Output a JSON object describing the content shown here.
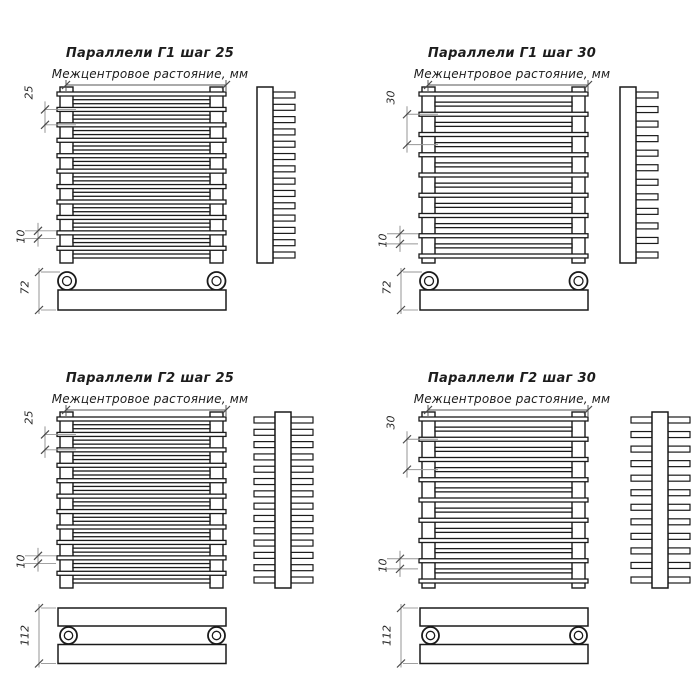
{
  "sheet": {
    "background": "#ffffff",
    "ink": "#1a1a1a",
    "dim_line_color": "#969696",
    "tick_color": "#4a4a4a",
    "units_note": "мм"
  },
  "diagrams": [
    {
      "title": "Параллели Г1 шаг 25",
      "subtitle": "Межцентровое растояние, мм",
      "variant": "G1",
      "step": "25",
      "gap": "10",
      "depth": "72",
      "tube_rows": 22,
      "side_teeth": 14
    },
    {
      "title": "Параллели Г1 шаг 30",
      "subtitle": "Межцентровое растояние, мм",
      "variant": "G1",
      "step": "30",
      "gap": "10",
      "depth": "72",
      "tube_rows": 17,
      "side_teeth": 12
    },
    {
      "title": "Параллели Г2 шаг 25",
      "subtitle": "Межцентровое растояние, мм",
      "variant": "G2",
      "step": "25",
      "gap": "10",
      "depth": "112",
      "tube_rows": 22,
      "side_teeth": 14
    },
    {
      "title": "Параллели Г2 шаг 30",
      "subtitle": "Межцентровое растояние, мм",
      "variant": "G2",
      "step": "30",
      "gap": "10",
      "depth": "112",
      "tube_rows": 17,
      "side_teeth": 12
    }
  ]
}
